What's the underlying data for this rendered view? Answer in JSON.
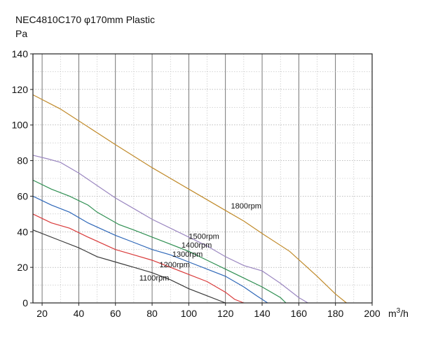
{
  "chart_data": {
    "type": "line",
    "title": "NEC4810C170 φ170mm Plastic",
    "ylabel": "Pa",
    "xlabel": "m³/h",
    "xlim": [
      15,
      200
    ],
    "ylim": [
      0,
      140
    ],
    "xticks": [
      20,
      40,
      60,
      80,
      100,
      120,
      140,
      160,
      180,
      200
    ],
    "yticks": [
      0,
      20,
      40,
      60,
      80,
      100,
      120,
      140
    ],
    "grid": true,
    "series": [
      {
        "name": "1800rpm",
        "color": "#c08a2a",
        "points": [
          [
            15,
            117
          ],
          [
            30,
            109
          ],
          [
            45,
            99
          ],
          [
            60,
            89
          ],
          [
            80,
            76
          ],
          [
            100,
            64
          ],
          [
            120,
            52
          ],
          [
            130,
            46
          ],
          [
            140,
            39
          ],
          [
            155,
            29
          ],
          [
            170,
            15
          ],
          [
            180,
            5
          ],
          [
            186,
            0
          ]
        ]
      },
      {
        "name": "1500rpm",
        "color": "#9a86c0",
        "points": [
          [
            15,
            83
          ],
          [
            23,
            81
          ],
          [
            30,
            79
          ],
          [
            40,
            73
          ],
          [
            50,
            66
          ],
          [
            60,
            59
          ],
          [
            70,
            53
          ],
          [
            80,
            47
          ],
          [
            90,
            42
          ],
          [
            100,
            37
          ],
          [
            110,
            32
          ],
          [
            120,
            26
          ],
          [
            130,
            21
          ],
          [
            140,
            18
          ],
          [
            150,
            11
          ],
          [
            160,
            3
          ],
          [
            165,
            0
          ]
        ]
      },
      {
        "name": "1400rpm",
        "color": "#2f8f52",
        "points": [
          [
            15,
            69
          ],
          [
            25,
            64
          ],
          [
            35,
            60
          ],
          [
            45,
            55
          ],
          [
            50,
            51
          ],
          [
            62,
            44
          ],
          [
            70,
            41
          ],
          [
            80,
            37
          ],
          [
            90,
            33
          ],
          [
            100,
            29
          ],
          [
            110,
            24
          ],
          [
            120,
            19
          ],
          [
            130,
            14
          ],
          [
            140,
            9
          ],
          [
            150,
            3
          ],
          [
            153,
            0
          ]
        ]
      },
      {
        "name": "1300rpm",
        "color": "#2e67b8",
        "points": [
          [
            15,
            60
          ],
          [
            25,
            55
          ],
          [
            35,
            51
          ],
          [
            45,
            45
          ],
          [
            60,
            38
          ],
          [
            70,
            34
          ],
          [
            80,
            30
          ],
          [
            90,
            27
          ],
          [
            100,
            23
          ],
          [
            110,
            19
          ],
          [
            120,
            15
          ],
          [
            130,
            9
          ],
          [
            137,
            4
          ],
          [
            143,
            0
          ]
        ]
      },
      {
        "name": "1200rpm",
        "color": "#d93a3a",
        "points": [
          [
            15,
            50
          ],
          [
            25,
            45
          ],
          [
            35,
            42
          ],
          [
            45,
            37
          ],
          [
            60,
            30
          ],
          [
            70,
            27
          ],
          [
            80,
            24
          ],
          [
            90,
            20
          ],
          [
            100,
            16
          ],
          [
            110,
            12
          ],
          [
            120,
            6
          ],
          [
            125,
            2
          ],
          [
            130,
            0
          ]
        ]
      },
      {
        "name": "1100rpm",
        "color": "#3a3a3a",
        "points": [
          [
            15,
            41
          ],
          [
            30,
            35
          ],
          [
            40,
            31
          ],
          [
            50,
            26
          ],
          [
            60,
            23
          ],
          [
            70,
            20
          ],
          [
            80,
            17
          ],
          [
            90,
            13
          ],
          [
            100,
            8
          ],
          [
            110,
            4
          ],
          [
            120,
            0
          ]
        ]
      }
    ],
    "annotations": [
      {
        "text": "1800rpm",
        "x": 123,
        "y": 53
      },
      {
        "text": "1500rpm",
        "x": 100,
        "y": 36
      },
      {
        "text": "1400rpm",
        "x": 96,
        "y": 31
      },
      {
        "text": "1300rpm",
        "x": 91,
        "y": 26
      },
      {
        "text": "1200rpm",
        "x": 84,
        "y": 20
      },
      {
        "text": "1100rpm",
        "x": 73,
        "y": 12.5
      }
    ]
  }
}
